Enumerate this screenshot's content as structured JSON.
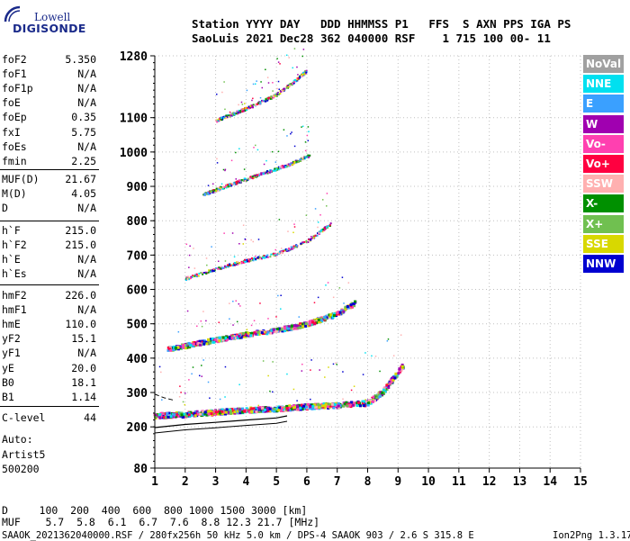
{
  "logo": {
    "line1": "Lowell",
    "line2": "DIGISONDE"
  },
  "header": {
    "labels": "Station YYYY DAY   DDD HHMMSS P1   FFS  S AXN PPS IGA PS",
    "values": "SaoLuis 2021 Dec28 362 040000 RSF    1 715 100 00- 11"
  },
  "params": {
    "group1": [
      {
        "label": "foF2",
        "value": "5.350"
      },
      {
        "label": "foF1",
        "value": "N/A"
      },
      {
        "label": "foF1p",
        "value": "N/A"
      },
      {
        "label": "foE",
        "value": "N/A"
      },
      {
        "label": "foEp",
        "value": "0.35"
      },
      {
        "label": "fxI",
        "value": "5.75"
      },
      {
        "label": "foEs",
        "value": "N/A"
      },
      {
        "label": "fmin",
        "value": "2.25"
      }
    ],
    "group2": [
      {
        "label": "MUF(D)",
        "value": "21.67"
      },
      {
        "label": "M(D)",
        "value": "4.05"
      },
      {
        "label": "D",
        "value": "N/A"
      }
    ],
    "group3": [
      {
        "label": "h`F",
        "value": "215.0"
      },
      {
        "label": "h`F2",
        "value": "215.0"
      },
      {
        "label": "h`E",
        "value": "N/A"
      },
      {
        "label": "h`Es",
        "value": "N/A"
      }
    ],
    "group4": [
      {
        "label": "hmF2",
        "value": "226.0"
      },
      {
        "label": "hmF1",
        "value": "N/A"
      },
      {
        "label": "hmE",
        "value": "110.0"
      },
      {
        "label": "yF2",
        "value": "15.1"
      },
      {
        "label": "yF1",
        "value": "N/A"
      },
      {
        "label": "yE",
        "value": "20.0"
      },
      {
        "label": "B0",
        "value": "18.1"
      },
      {
        "label": "B1",
        "value": "1.14"
      }
    ],
    "clevel": {
      "label": "C-level",
      "value": "44"
    },
    "auto": [
      "Auto:",
      "Artist5",
      "500200"
    ]
  },
  "legend": [
    {
      "label": "NoVal",
      "color": "#a0a0a0"
    },
    {
      "label": "NNE",
      "color": "#00e0f0"
    },
    {
      "label": "E",
      "color": "#3aa0ff"
    },
    {
      "label": "W",
      "color": "#a000b0"
    },
    {
      "label": "Vo-",
      "color": "#ff40b0"
    },
    {
      "label": "Vo+",
      "color": "#ff0040"
    },
    {
      "label": "SSW",
      "color": "#ffb0b0"
    },
    {
      "label": "X-",
      "color": "#009000"
    },
    {
      "label": "X+",
      "color": "#70c050"
    },
    {
      "label": "SSE",
      "color": "#d8d800"
    },
    {
      "label": "NNW",
      "color": "#0000d0"
    }
  ],
  "bottom": {
    "d_row": "D     100  200  400  600  800 1000 1500 3000 [km]",
    "muf_row": "MUF    5.7  5.8  6.1  6.7  7.6  8.8 12.3 21.7 [MHz]",
    "footer_left": "SAAOK_2021362040000.RSF / 280fx256h 50 kHz 5.0 km / DPS-4 SAAOK 903 / 2.6 S 315.8 E",
    "footer_right": "Ion2Png 1.3.17"
  },
  "chart_data": {
    "type": "scatter",
    "title": "",
    "xlabel": "",
    "ylabel": "",
    "xlim": [
      1,
      15
    ],
    "ylim": [
      80,
      1280
    ],
    "x_ticks": [
      "1",
      "2",
      "3",
      "4",
      "5",
      "6",
      "7",
      "8",
      "9",
      "10",
      "11",
      "12",
      "13",
      "14",
      "15"
    ],
    "y_ticks": [
      "80",
      "200",
      "300",
      "400",
      "500",
      "600",
      "700",
      "800",
      "900",
      "1000",
      "1100",
      "1280"
    ],
    "grid": true,
    "series": [
      {
        "name": "1st hop F trace",
        "x": [
          1.0,
          2.0,
          3.0,
          4.0,
          5.0,
          6.0,
          7.0,
          8.0,
          8.5,
          9.2
        ],
        "y": [
          232,
          235,
          242,
          248,
          252,
          258,
          262,
          268,
          300,
          380
        ]
      },
      {
        "name": "2nd hop F trace",
        "x": [
          1.4,
          2.0,
          3.0,
          4.0,
          5.0,
          6.0,
          7.0,
          7.6
        ],
        "y": [
          425,
          435,
          452,
          468,
          480,
          498,
          528,
          560
        ]
      },
      {
        "name": "3rd hop F trace",
        "x": [
          2.0,
          3.0,
          4.0,
          5.0,
          6.0,
          6.8
        ],
        "y": [
          630,
          658,
          683,
          702,
          738,
          790
        ]
      },
      {
        "name": "4th hop F trace",
        "x": [
          2.6,
          3.5,
          4.5,
          5.5,
          6.1
        ],
        "y": [
          875,
          905,
          935,
          965,
          990
        ]
      },
      {
        "name": "5th hop F trace",
        "x": [
          3.0,
          4.0,
          5.0,
          5.6,
          6.0
        ],
        "y": [
          1090,
          1125,
          1165,
          1205,
          1235
        ]
      }
    ],
    "calculated_profile": {
      "x": [
        1.0,
        2.0,
        3.0,
        4.0,
        5.0,
        5.35
      ],
      "y": [
        198,
        207,
        213,
        220,
        226,
        232
      ]
    },
    "fx_boundary_marker": {
      "x": [
        1.0,
        1.3,
        1.6
      ],
      "y": [
        295,
        285,
        278
      ]
    }
  }
}
